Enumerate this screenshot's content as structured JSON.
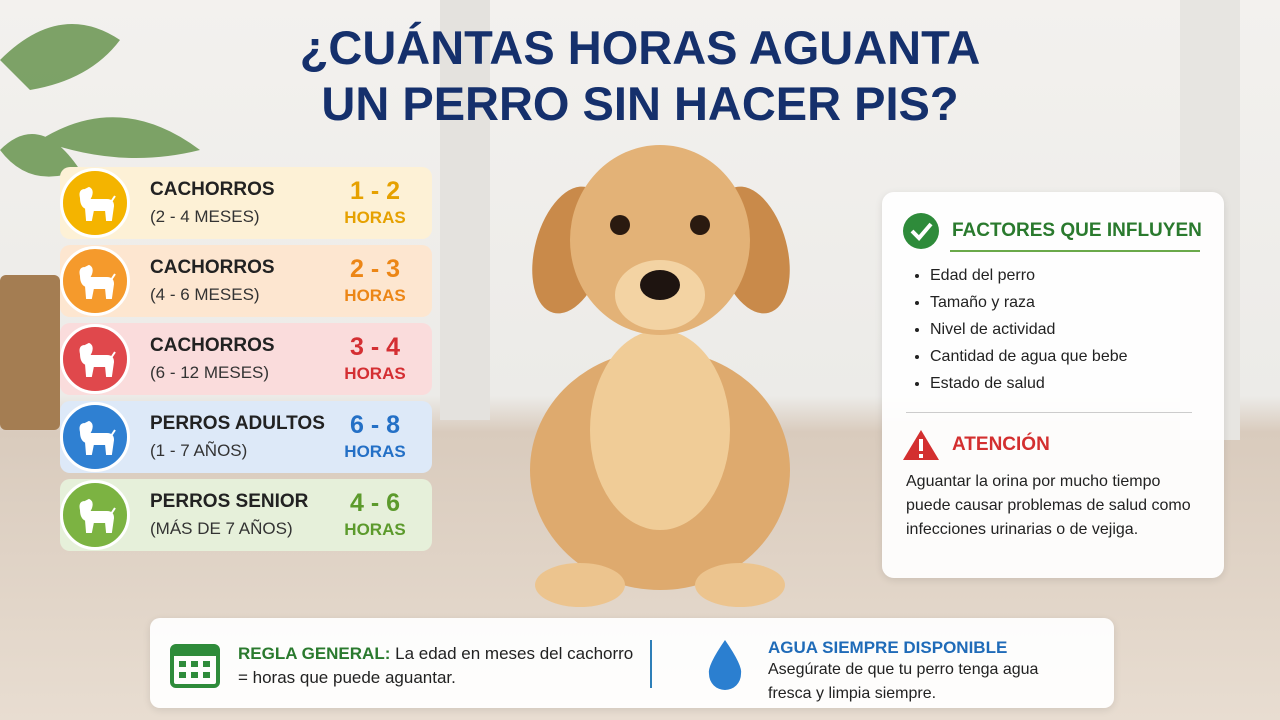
{
  "header": {
    "title_lines": [
      "¿CUÁNTAS HORAS AGUANTA",
      "UN PERRO SIN HACER PIS?"
    ]
  },
  "age_groups": [
    {
      "label": "CACHORROS",
      "sublabel": "(2 - 4 MESES)",
      "hours": "1 - 2",
      "unit": "HORAS",
      "color": "#f4b400",
      "hours_color": "#e6a100",
      "bg": "#fdf1d6"
    },
    {
      "label": "CACHORROS",
      "sublabel": "(4 - 6 MESES)",
      "hours": "2 - 3",
      "unit": "HORAS",
      "color": "#f59a2c",
      "hours_color": "#ec8616",
      "bg": "#fde6d0"
    },
    {
      "label": "CACHORROS",
      "sublabel": "(6 - 12 MESES)",
      "hours": "3 - 4",
      "unit": "HORAS",
      "color": "#e0484c",
      "hours_color": "#d42f33",
      "bg": "#fadcdc"
    },
    {
      "label": "PERROS ADULTOS",
      "sublabel": "(1 - 7 AÑOS)",
      "hours": "6 - 8",
      "unit": "HORAS",
      "color": "#2f80d2",
      "hours_color": "#2470c6",
      "bg": "#dde9f8"
    },
    {
      "label": "PERROS SENIOR",
      "sublabel": "(MÁS DE 7 AÑOS)",
      "hours": "4 - 6",
      "unit": "HORAS",
      "color": "#7cb342",
      "hours_color": "#5c9a2c",
      "bg": "#e6f0da"
    }
  ],
  "factors": {
    "title": "FACTORES QUE INFLUYEN",
    "items": [
      "Edad del perro",
      "Tamaño y raza",
      "Nivel de actividad",
      "Cantidad de agua que bebe",
      "Estado de salud"
    ]
  },
  "attention": {
    "title": "ATENCIÓN",
    "text": "Aguantar la orina por mucho tiempo puede causar problemas de salud como infecciones urinarias o de vejiga."
  },
  "rule": {
    "label": "REGLA GENERAL:",
    "text": "La edad en meses del cachorro = horas que puede aguantar."
  },
  "water": {
    "title": "AGUA SIEMPRE DISPONIBLE",
    "text": "Asegúrate de que tu perro tenga agua fresca y limpia siempre."
  }
}
